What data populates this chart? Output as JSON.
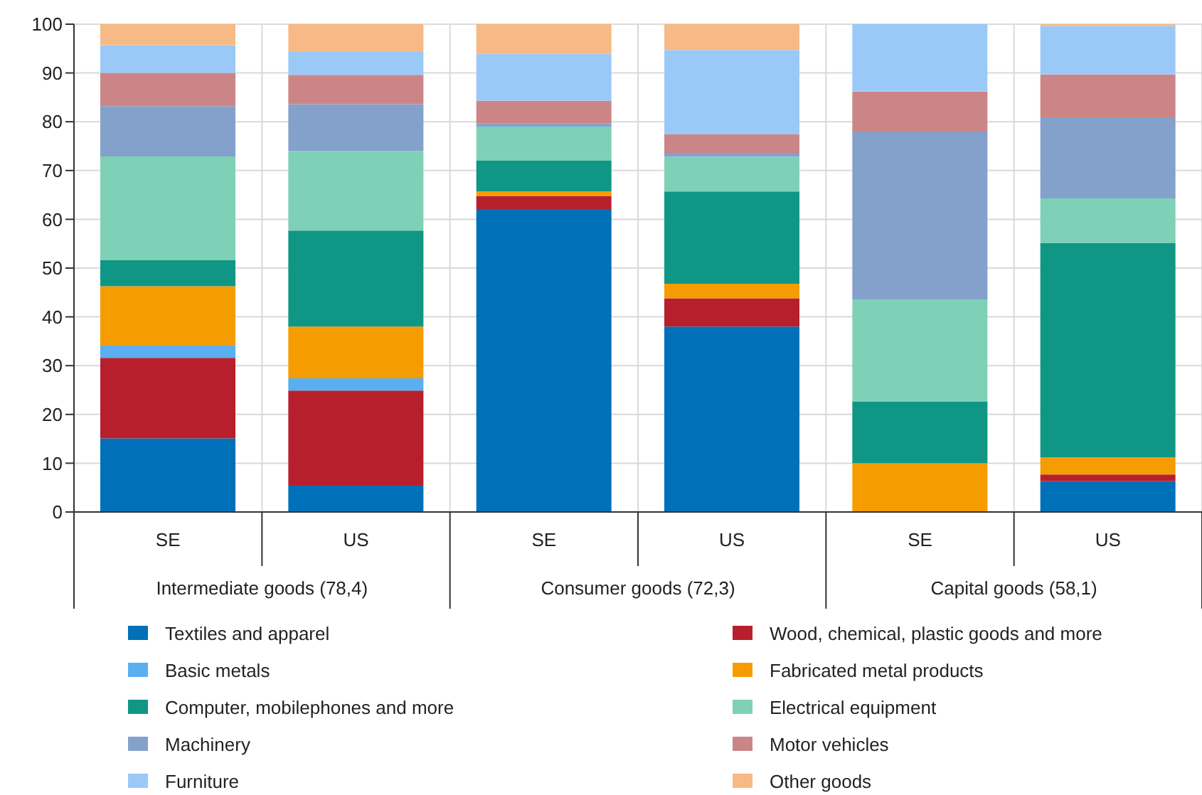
{
  "chart_data": {
    "type": "bar",
    "stacked": true,
    "categories": [
      "SE",
      "US",
      "SE",
      "US",
      "SE",
      "US"
    ],
    "annotations": [
      "Intermediate goods (78,4)",
      "Consumer goods (72,3)",
      "Capital goods (58,1)"
    ],
    "series": [
      {
        "name": "Textiles and apparel",
        "color": "#0070b8",
        "values": [
          15.1,
          5.4,
          62.1,
          38.0,
          0,
          6.3
        ]
      },
      {
        "name": "Wood, chemical, plastic goods and more",
        "color": "#b81f2d",
        "values": [
          16.5,
          19.5,
          2.7,
          5.8,
          0,
          1.4
        ]
      },
      {
        "name": "Basic metals",
        "color": "#5aaff0",
        "values": [
          2.5,
          2.5,
          0,
          0,
          0,
          0
        ]
      },
      {
        "name": "Fabricated metal products",
        "color": "#f59c00",
        "values": [
          12.2,
          10.6,
          0.9,
          3.0,
          10.0,
          3.5
        ]
      },
      {
        "name": "Computer, mobilephones and more",
        "color": "#109684",
        "values": [
          5.3,
          19.7,
          6.3,
          18.9,
          12.6,
          43.9
        ]
      },
      {
        "name": "Electrical equipment",
        "color": "#7ed1b7",
        "values": [
          21.3,
          16.3,
          7.0,
          7.1,
          21.0,
          9.2
        ]
      },
      {
        "name": "Machinery",
        "color": "#84a1cb",
        "values": [
          10.3,
          9.6,
          0.7,
          0.8,
          34.4,
          16.6
        ]
      },
      {
        "name": "Motor vehicles",
        "color": "#cc8586",
        "values": [
          6.8,
          6.0,
          4.6,
          3.8,
          8.2,
          8.8
        ]
      },
      {
        "name": "Furniture",
        "color": "#9bc9f7",
        "values": [
          5.7,
          4.7,
          9.6,
          17.3,
          13.8,
          9.9
        ]
      },
      {
        "name": "Other goods",
        "color": "#f7b986",
        "values": [
          4.3,
          5.7,
          6.1,
          5.3,
          0,
          0.4
        ]
      }
    ],
    "ylim": [
      0,
      100
    ],
    "yticks": [
      0,
      10,
      20,
      30,
      40,
      50,
      60,
      70,
      80,
      90,
      100
    ],
    "grid": true,
    "legend": "bottom"
  }
}
